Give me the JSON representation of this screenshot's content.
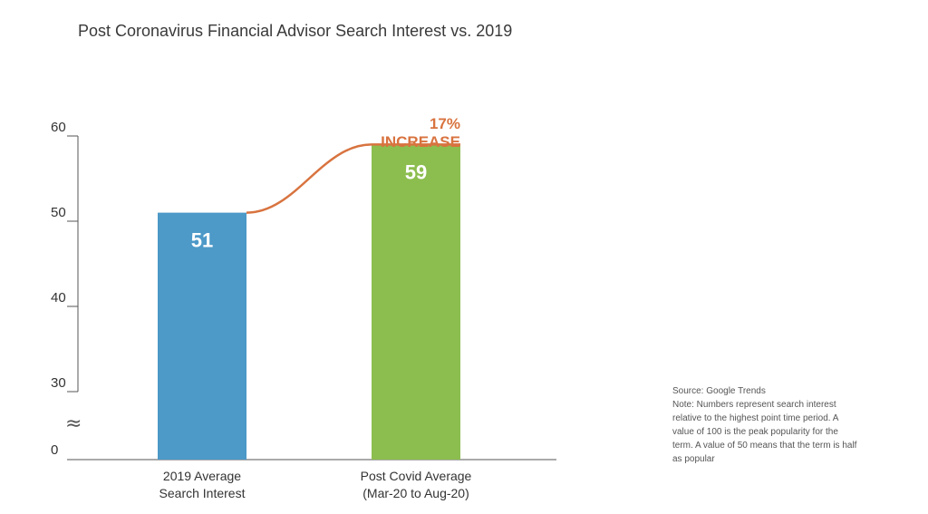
{
  "colors": {
    "bar_2019": "#4d99c8",
    "bar_covid": "#8cbd4f",
    "accent": "#d8733f",
    "axis": "#555555",
    "text": "#333333"
  },
  "chart_data": {
    "type": "bar",
    "title": "Post Coronavirus Financial Advisor Search Interest vs. 2019",
    "categories": [
      [
        "2019 Average",
        "Search Interest"
      ],
      [
        "Post Covid Average",
        "(Mar-20 to Aug-20)"
      ]
    ],
    "values": [
      51,
      59
    ],
    "value_labels": [
      "51",
      "59"
    ],
    "yticks": [
      "60",
      "50",
      "40",
      "30",
      "0"
    ],
    "axis_break_symbol": "≈",
    "ylim": [
      0,
      60
    ],
    "annotation": {
      "lines": [
        "17%",
        "INCREASE"
      ]
    },
    "grid": false,
    "legend": "none"
  },
  "notes": {
    "source": "Source: Google Trends",
    "lines": [
      "Note: Numbers represent search interest",
      "relative to the highest point time period. A",
      "value of 100 is the peak popularity for the",
      "term. A value of 50 means that the term is half",
      "as popular"
    ]
  }
}
